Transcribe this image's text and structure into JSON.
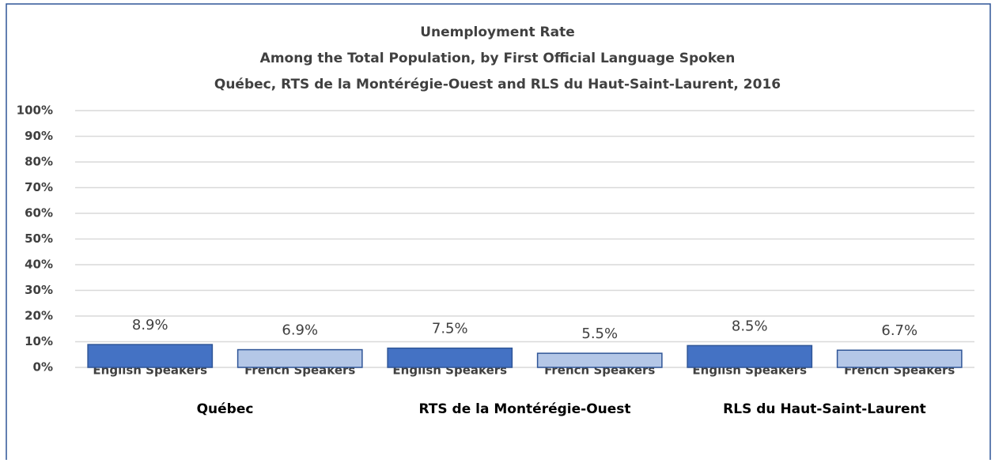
{
  "chart_data": {
    "type": "bar",
    "title": [
      "Unemployment Rate",
      "Among the Total Population, by First Official Language Spoken",
      "Québec, RTS de la Montérégie-Ouest and RLS du Haut-Saint-Laurent, 2016"
    ],
    "categories": [
      "English Speakers",
      "French Speakers",
      "English Speakers",
      "French Speakers",
      "English Speakers",
      "French Speakers"
    ],
    "groups": [
      "Québec",
      "RTS de la Montérégie-Ouest",
      "RLS du Haut-Saint-Laurent"
    ],
    "values": [
      8.9,
      6.9,
      7.5,
      5.5,
      8.5,
      6.7
    ],
    "value_labels": [
      "8.9%",
      "6.9%",
      "7.5%",
      "5.5%",
      "8.5%",
      "6.7%"
    ],
    "colors": [
      "#4472c4",
      "#b4c7e7",
      "#4472c4",
      "#b4c7e7",
      "#4472c4",
      "#b4c7e7"
    ],
    "edgecolor": "#2f5597",
    "ylim": [
      0,
      100
    ],
    "yticks": [
      {
        "value": 0,
        "label": "0%"
      },
      {
        "value": 10,
        "label": "10%"
      },
      {
        "value": 20,
        "label": "20%"
      },
      {
        "value": 30,
        "label": "30%"
      },
      {
        "value": 40,
        "label": "40%"
      },
      {
        "value": 50,
        "label": "50%"
      },
      {
        "value": 60,
        "label": "60%"
      },
      {
        "value": 70,
        "label": "70%"
      },
      {
        "value": 80,
        "label": "80%"
      },
      {
        "value": 90,
        "label": "90%"
      },
      {
        "value": 100,
        "label": "100%"
      }
    ],
    "grid": true
  }
}
